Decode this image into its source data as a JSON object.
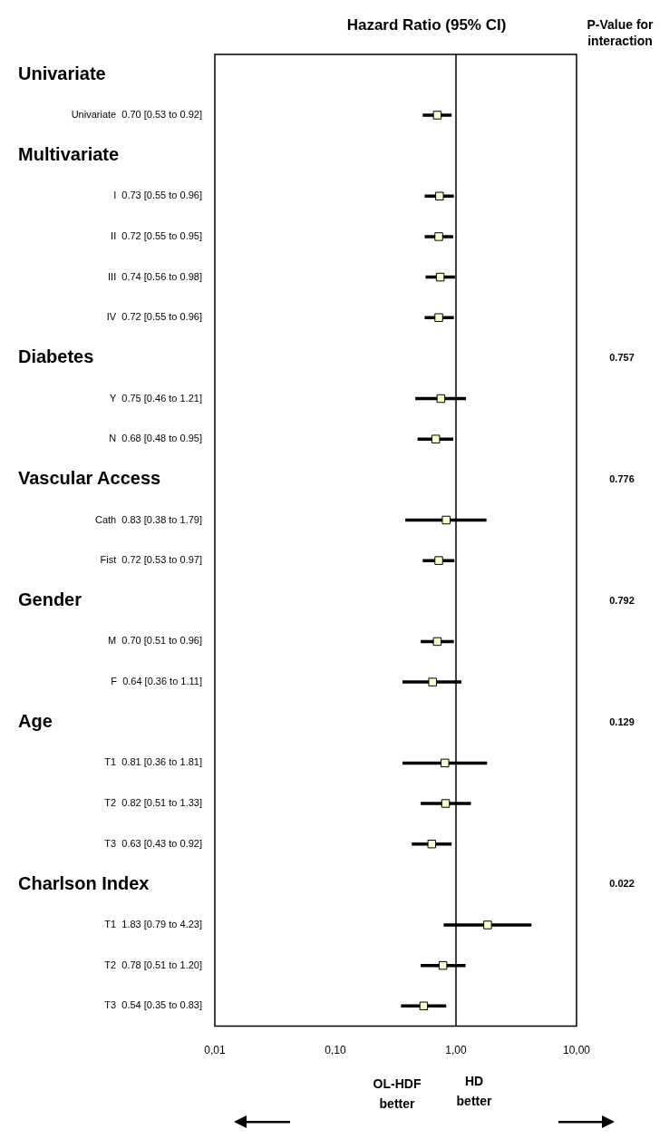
{
  "chart_data": {
    "type": "scatter",
    "orientation": "horizontal",
    "title": "Hazard Ratio (95% CI)",
    "categories": [
      null,
      "Univariate  0.70 [0.53 to 0.92]",
      null,
      "I  0.73 [0.55 to 0.96]",
      "II  0.72 [0.55 to 0.95]",
      "III  0.74 [0.56 to 0.98]",
      "IV  0.72 [0.55 to 0.96]",
      null,
      "Y  0.75 [0.46 to 1.21]",
      "N  0.68 [0.48 to 0.95]",
      null,
      "Cath  0.83 [0.38 to 1.79]",
      "Fist  0.72 [0.53 to 0.97]",
      null,
      "M  0.70 [0.51 to 0.96]",
      "F  0.64 [0.36 to 1.11]",
      null,
      "T1  0.81 [0.36 to 1.81]",
      "T2  0.82 [0.51 to 1.33]",
      "T3  0.63 [0.43 to 0.92]",
      null,
      "T1  1.83 [0.79 to 4.23]",
      "T2  0.78 [0.51 to 1.20]",
      "T3  0.54 [0.35 to 0.83]"
    ],
    "values": [
      null,
      0.7,
      null,
      0.73,
      0.72,
      0.74,
      0.72,
      null,
      0.75,
      0.68,
      null,
      0.83,
      0.72,
      null,
      0.7,
      0.64,
      null,
      0.81,
      0.82,
      0.63,
      null,
      1.83,
      0.78,
      0.54
    ],
    "errors": [
      null,
      [
        0.53,
        0.92
      ],
      null,
      [
        0.55,
        0.96
      ],
      [
        0.55,
        0.95
      ],
      [
        0.56,
        0.98
      ],
      [
        0.55,
        0.96
      ],
      null,
      [
        0.46,
        1.21
      ],
      [
        0.48,
        0.95
      ],
      null,
      [
        0.38,
        1.79
      ],
      [
        0.53,
        0.97
      ],
      null,
      [
        0.51,
        0.96
      ],
      [
        0.36,
        1.11
      ],
      null,
      [
        0.36,
        1.81
      ],
      [
        0.51,
        1.33
      ],
      [
        0.43,
        0.92
      ],
      null,
      [
        0.79,
        4.23
      ],
      [
        0.51,
        1.2
      ],
      [
        0.35,
        0.83
      ]
    ],
    "color": "#ffffcc",
    "marker": "square",
    "log": "x",
    "xlim": [
      0.01,
      10
    ],
    "xticks": [
      {
        "value": 0.01,
        "label": "0,01"
      },
      {
        "value": 0.1,
        "label": "0,10"
      },
      {
        "value": 1,
        "label": "1,00"
      },
      {
        "value": 10,
        "label": "10,00"
      }
    ],
    "ref_lines": [
      {
        "axis": "x",
        "value": 1
      }
    ],
    "grid": false,
    "legend": false,
    "annotations": [
      "P-Value for interaction",
      "Univariate",
      "Multivariate",
      "Diabetes",
      "Vascular Access",
      "Gender",
      "Age",
      "Charlson Index",
      "0.757",
      "0.776",
      "0.792",
      "0.129",
      "0.022",
      "OL-HDF better",
      "HD better"
    ]
  }
}
